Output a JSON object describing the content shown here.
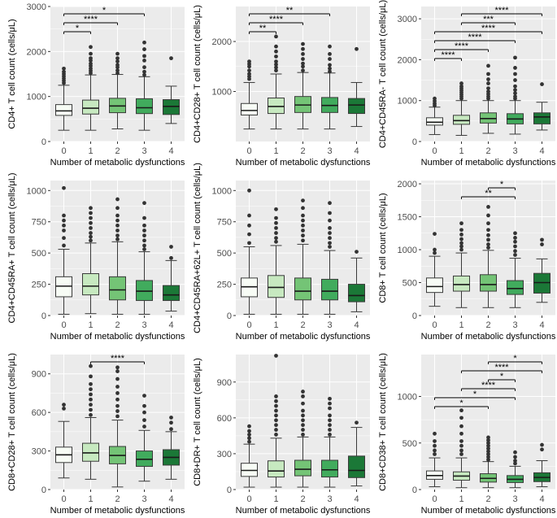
{
  "figure": {
    "colors": {
      "panel_bg": "#ebebeb",
      "grid": "#ffffff",
      "box_stroke": "#3a3a3a",
      "outlier": "#333333",
      "fills": [
        "#f7fcf5",
        "#c7e9c0",
        "#74c476",
        "#41ab5d",
        "#1b7837"
      ]
    }
  },
  "chart_data": [
    {
      "type": "box",
      "xlabel": "Number of metabolic dysfunctions",
      "ylabel": "CD4+ T cell count (cells/μL)",
      "categories": [
        "0",
        "1",
        "2",
        "3",
        "4"
      ],
      "ylim": [
        0,
        3000
      ],
      "yticks": [
        0,
        1000,
        2000,
        3000
      ],
      "boxes": [
        {
          "q1": 580,
          "median": 680,
          "q3": 820,
          "wlo": 250,
          "whi": 1250
        },
        {
          "q1": 610,
          "median": 740,
          "q3": 920,
          "wlo": 250,
          "whi": 1480
        },
        {
          "q1": 640,
          "median": 790,
          "q3": 960,
          "wlo": 280,
          "whi": 1490
        },
        {
          "q1": 620,
          "median": 750,
          "q3": 950,
          "wlo": 250,
          "whi": 1440
        },
        {
          "q1": 600,
          "median": 780,
          "q3": 930,
          "wlo": 400,
          "whi": 1230
        }
      ],
      "outliers": [
        [
          1300,
          1350,
          1400,
          1450,
          1500,
          1550,
          1620
        ],
        [
          1520,
          1570,
          1620,
          1680,
          1730,
          1800,
          1850,
          1950,
          2100
        ],
        [
          1520,
          1580,
          1650,
          1700,
          1780,
          1850,
          1950
        ],
        [
          1480,
          1550,
          1650,
          1800,
          1900,
          2050,
          2200
        ],
        [
          1850
        ]
      ],
      "significance": [
        {
          "from": "0",
          "to": "1",
          "label": "*"
        },
        {
          "from": "0",
          "to": "2",
          "label": "****"
        },
        {
          "from": "0",
          "to": "3",
          "label": "*"
        }
      ]
    },
    {
      "type": "box",
      "xlabel": "Number of metabolic dysfunctions",
      "ylabel": "CD4+CD28+ T cell count (cells/μL)",
      "categories": [
        "0",
        "1",
        "2",
        "3",
        "4"
      ],
      "ylim": [
        0,
        2700
      ],
      "yticks": [
        1000,
        2000
      ],
      "boxes": [
        {
          "q1": 530,
          "median": 620,
          "q3": 760,
          "wlo": 250,
          "whi": 1180
        },
        {
          "q1": 560,
          "median": 700,
          "q3": 870,
          "wlo": 250,
          "whi": 1350
        },
        {
          "q1": 580,
          "median": 730,
          "q3": 900,
          "wlo": 250,
          "whi": 1380
        },
        {
          "q1": 580,
          "median": 720,
          "q3": 880,
          "wlo": 250,
          "whi": 1370
        },
        {
          "q1": 560,
          "median": 730,
          "q3": 860,
          "wlo": 300,
          "whi": 1180
        }
      ],
      "outliers": [
        [
          1250,
          1300,
          1350,
          1420,
          1500,
          1550,
          1600
        ],
        [
          1420,
          1480,
          1540,
          1600,
          1700,
          1800,
          1900,
          2100
        ],
        [
          1420,
          1500,
          1560,
          1650,
          1750,
          1850,
          1950
        ],
        [
          1400,
          1460,
          1530,
          1650,
          1750,
          1900
        ],
        [
          1850
        ]
      ],
      "significance": [
        {
          "from": "0",
          "to": "1",
          "label": "**"
        },
        {
          "from": "0",
          "to": "2",
          "label": "****"
        },
        {
          "from": "0",
          "to": "3",
          "label": "**"
        }
      ]
    },
    {
      "type": "box",
      "xlabel": "Number of metabolic dysfunctions",
      "ylabel": "CD4+CD45RA- T cell count (cells/μL)",
      "categories": [
        "0",
        "1",
        "2",
        "3",
        "4"
      ],
      "ylim": [
        0,
        3300
      ],
      "yticks": [
        0,
        1000,
        2000,
        3000
      ],
      "boxes": [
        {
          "q1": 400,
          "median": 470,
          "q3": 580,
          "wlo": 170,
          "whi": 840
        },
        {
          "q1": 420,
          "median": 510,
          "q3": 640,
          "wlo": 150,
          "whi": 1000
        },
        {
          "q1": 450,
          "median": 560,
          "q3": 700,
          "wlo": 200,
          "whi": 1000
        },
        {
          "q1": 430,
          "median": 550,
          "q3": 680,
          "wlo": 180,
          "whi": 1000
        },
        {
          "q1": 430,
          "median": 600,
          "q3": 700,
          "wlo": 280,
          "whi": 960
        }
      ],
      "outliers": [
        [
          880,
          930,
          990,
          1050
        ],
        [
          1050,
          1100,
          1150,
          1200,
          1250,
          1300,
          1350,
          1420
        ],
        [
          1050,
          1100,
          1160,
          1220,
          1300,
          1420,
          1520,
          1650,
          1850
        ],
        [
          1050,
          1100,
          1180,
          1260,
          1350,
          1500,
          1650,
          1800,
          2050
        ],
        [
          1400
        ]
      ],
      "significance": [
        {
          "from": "0",
          "to": "1",
          "label": "****"
        },
        {
          "from": "0",
          "to": "2",
          "label": "****"
        },
        {
          "from": "0",
          "to": "3",
          "label": "****"
        },
        {
          "from": "0",
          "to": "4",
          "label": "****"
        },
        {
          "from": "1",
          "to": "3",
          "label": "***"
        },
        {
          "from": "1",
          "to": "4",
          "label": "****"
        }
      ]
    },
    {
      "type": "box",
      "xlabel": "Number of metabolic dysfunctions",
      "ylabel": "CD4+CD45RA+ T cell count (cells/μL)",
      "categories": [
        "0",
        "1",
        "2",
        "3",
        "4"
      ],
      "ylim": [
        0,
        1080
      ],
      "yticks": [
        0,
        250,
        500,
        750,
        1000
      ],
      "boxes": [
        {
          "q1": 150,
          "median": 235,
          "q3": 310,
          "wlo": 10,
          "whi": 530
        },
        {
          "q1": 165,
          "median": 235,
          "q3": 335,
          "wlo": 15,
          "whi": 580
        },
        {
          "q1": 125,
          "median": 205,
          "q3": 310,
          "wlo": 10,
          "whi": 590
        },
        {
          "q1": 120,
          "median": 195,
          "q3": 280,
          "wlo": 10,
          "whi": 510
        },
        {
          "q1": 120,
          "median": 165,
          "q3": 240,
          "wlo": 35,
          "whi": 440
        }
      ],
      "outliers": [
        [
          560,
          620,
          680,
          720,
          760,
          800,
          1020
        ],
        [
          600,
          630,
          660,
          700,
          740,
          780,
          820,
          860
        ],
        [
          610,
          640,
          680,
          720,
          760,
          800,
          860,
          930
        ],
        [
          530,
          560,
          600,
          640,
          680,
          720,
          780,
          900
        ],
        [
          460,
          550
        ]
      ],
      "significance": []
    },
    {
      "type": "box",
      "xlabel": "Number of metabolic dysfunctions",
      "ylabel": "CD4+CD45RA+62L+ T cell count (cells/μL)",
      "categories": [
        "0",
        "1",
        "2",
        "3",
        "4"
      ],
      "ylim": [
        0,
        1080
      ],
      "yticks": [
        0,
        250,
        500,
        750,
        1000
      ],
      "boxes": [
        {
          "q1": 150,
          "median": 230,
          "q3": 300,
          "wlo": 10,
          "whi": 550
        },
        {
          "q1": 145,
          "median": 225,
          "q3": 320,
          "wlo": 10,
          "whi": 560
        },
        {
          "q1": 125,
          "median": 195,
          "q3": 300,
          "wlo": 10,
          "whi": 570
        },
        {
          "q1": 125,
          "median": 195,
          "q3": 290,
          "wlo": 10,
          "whi": 520
        },
        {
          "q1": 110,
          "median": 160,
          "q3": 250,
          "wlo": 30,
          "whi": 460
        }
      ],
      "outliers": [
        [
          580,
          650,
          720,
          800,
          1000
        ],
        [
          590,
          620,
          660,
          700,
          740,
          780,
          850
        ],
        [
          600,
          640,
          680,
          720,
          760,
          800,
          860,
          920
        ],
        [
          550,
          580,
          620,
          660,
          700,
          760,
          820,
          900
        ],
        [
          510
        ]
      ],
      "significance": []
    },
    {
      "type": "box",
      "xlabel": "Number of metabolic dysfunctions",
      "ylabel": "CD8+ T cell count (cells/μL)",
      "categories": [
        "0",
        "1",
        "2",
        "3",
        "4"
      ],
      "ylim": [
        0,
        2050
      ],
      "yticks": [
        0,
        500,
        1000,
        1500,
        2000
      ],
      "boxes": [
        {
          "q1": 350,
          "median": 440,
          "q3": 570,
          "wlo": 140,
          "whi": 900
        },
        {
          "q1": 370,
          "median": 470,
          "q3": 600,
          "wlo": 120,
          "whi": 950
        },
        {
          "q1": 370,
          "median": 470,
          "q3": 620,
          "wlo": 120,
          "whi": 990
        },
        {
          "q1": 320,
          "median": 410,
          "q3": 530,
          "wlo": 120,
          "whi": 870
        },
        {
          "q1": 340,
          "median": 500,
          "q3": 640,
          "wlo": 200,
          "whi": 860
        }
      ],
      "outliers": [
        [
          950,
          1000,
          1240
        ],
        [
          1000,
          1050,
          1100,
          1160,
          1230,
          1300,
          1400
        ],
        [
          1030,
          1080,
          1150,
          1220,
          1300,
          1400,
          1520,
          1650
        ],
        [
          920,
          980,
          1050,
          1120,
          1180,
          1250
        ],
        [
          1080,
          1150
        ]
      ],
      "significance": [
        {
          "from": "1",
          "to": "3",
          "label": "**"
        },
        {
          "from": "2",
          "to": "3",
          "label": "*"
        }
      ]
    },
    {
      "type": "box",
      "xlabel": "Number of metabolic dysfunctions",
      "ylabel": "CD8+CD28+ T cell count (cells/μL)",
      "categories": [
        "0",
        "1",
        "2",
        "3",
        "4"
      ],
      "ylim": [
        0,
        1050
      ],
      "yticks": [
        0,
        300,
        600,
        900
      ],
      "boxes": [
        {
          "q1": 210,
          "median": 270,
          "q3": 330,
          "wlo": 90,
          "whi": 530
        },
        {
          "q1": 220,
          "median": 285,
          "q3": 360,
          "wlo": 80,
          "whi": 560
        },
        {
          "q1": 200,
          "median": 265,
          "q3": 335,
          "wlo": 20,
          "whi": 540
        },
        {
          "q1": 180,
          "median": 235,
          "q3": 300,
          "wlo": 65,
          "whi": 460
        },
        {
          "q1": 190,
          "median": 250,
          "q3": 310,
          "wlo": 80,
          "whi": 450
        }
      ],
      "outliers": [
        [
          630,
          660
        ],
        [
          580,
          620,
          660,
          700,
          740,
          780,
          820,
          880,
          960
        ],
        [
          570,
          610,
          650,
          700,
          750,
          800,
          860,
          920,
          950
        ],
        [
          490,
          540,
          600,
          650,
          730
        ],
        [
          470,
          520,
          560
        ]
      ],
      "significance": [
        {
          "from": "1",
          "to": "3",
          "label": "****"
        }
      ]
    },
    {
      "type": "box",
      "xlabel": "Number of metabolic dysfunctions",
      "ylabel": "CD8+DR+ T cell count (cells/μL)",
      "categories": [
        "0",
        "1",
        "2",
        "3",
        "4"
      ],
      "ylim": [
        0,
        1130
      ],
      "yticks": [
        0,
        300,
        600,
        900
      ],
      "boxes": [
        {
          "q1": 110,
          "median": 160,
          "q3": 220,
          "wlo": 20,
          "whi": 380
        },
        {
          "q1": 105,
          "median": 155,
          "q3": 240,
          "wlo": 20,
          "whi": 430
        },
        {
          "q1": 115,
          "median": 170,
          "q3": 245,
          "wlo": 20,
          "whi": 440
        },
        {
          "q1": 105,
          "median": 165,
          "q3": 245,
          "wlo": 20,
          "whi": 440
        },
        {
          "q1": 100,
          "median": 160,
          "q3": 280,
          "wlo": 30,
          "whi": 520
        }
      ],
      "outliers": [
        [
          400,
          430,
          460,
          490,
          530
        ],
        [
          460,
          500,
          540,
          580,
          620,
          660,
          700,
          740,
          780,
          1120
        ],
        [
          460,
          500,
          540,
          580,
          620,
          660,
          720,
          780,
          820
        ],
        [
          460,
          500,
          540,
          580,
          620,
          680,
          720,
          760
        ],
        [
          560
        ]
      ],
      "significance": []
    },
    {
      "type": "box",
      "xlabel": "Number of metabolic dysfunctions",
      "ylabel": "CD8+CD38+ T cell count (cells/μL)",
      "categories": [
        "0",
        "1",
        "2",
        "3",
        "4"
      ],
      "ylim": [
        0,
        1450
      ],
      "yticks": [
        0,
        500,
        1000
      ],
      "boxes": [
        {
          "q1": 110,
          "median": 150,
          "q3": 200,
          "wlo": 30,
          "whi": 340
        },
        {
          "q1": 100,
          "median": 145,
          "q3": 190,
          "wlo": 20,
          "whi": 340
        },
        {
          "q1": 80,
          "median": 120,
          "q3": 170,
          "wlo": 20,
          "whi": 300
        },
        {
          "q1": 75,
          "median": 110,
          "q3": 150,
          "wlo": 20,
          "whi": 250
        },
        {
          "q1": 85,
          "median": 130,
          "q3": 180,
          "wlo": 30,
          "whi": 310
        }
      ],
      "outliers": [
        [
          380,
          420,
          470,
          520,
          600
        ],
        [
          380,
          420,
          470,
          520,
          600,
          680,
          770,
          850
        ],
        [
          320,
          350,
          380,
          410,
          440,
          470,
          500,
          530,
          560
        ],
        [
          280,
          310,
          350,
          400
        ],
        [
          430,
          480
        ]
      ],
      "significance": [
        {
          "from": "0",
          "to": "2",
          "label": "*"
        },
        {
          "from": "0",
          "to": "3",
          "label": "*"
        },
        {
          "from": "1",
          "to": "3",
          "label": "****"
        },
        {
          "from": "2",
          "to": "3",
          "label": "*"
        },
        {
          "from": "1",
          "to": "4",
          "label": "****"
        },
        {
          "from": "2",
          "to": "4",
          "label": "*"
        }
      ]
    }
  ]
}
